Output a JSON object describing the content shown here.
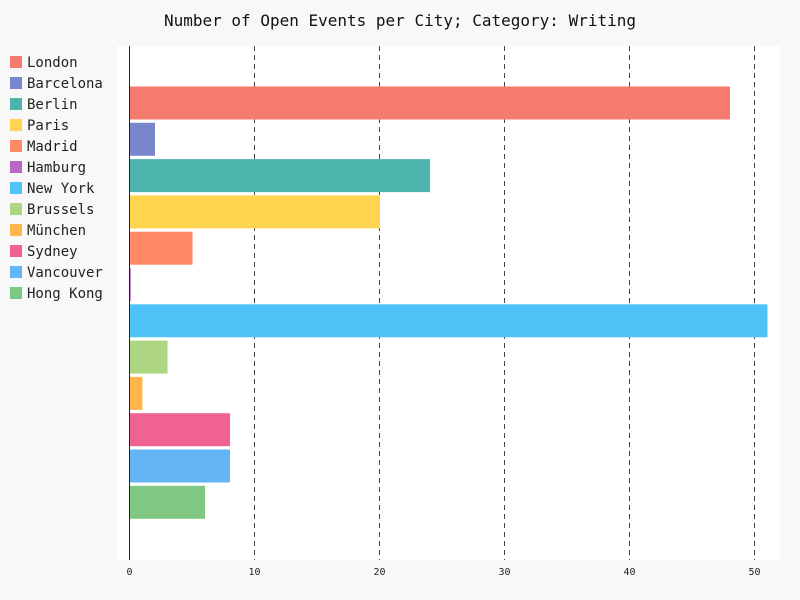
{
  "chart_data": {
    "type": "bar",
    "orientation": "horizontal",
    "title": "Number of Open Events per City; Category: Writing",
    "xlabel": "",
    "ylabel": "",
    "xlim": [
      0,
      51
    ],
    "x_ticks": [
      0,
      10,
      20,
      30,
      40,
      50
    ],
    "grid": "x-dashed",
    "legend_position": "left",
    "categories": [
      "London",
      "Barcelona",
      "Berlin",
      "Paris",
      "Madrid",
      "Hamburg",
      "New York",
      "Brussels",
      "München",
      "Sydney",
      "Vancouver",
      "Hong Kong"
    ],
    "values": [
      48,
      2,
      24,
      20,
      5,
      0,
      51,
      3,
      1,
      8,
      8,
      6
    ],
    "colors": [
      "#f67b6f",
      "#7986cb",
      "#4db6ac",
      "#ffd54f",
      "#ff8a65",
      "#ba68c8",
      "#4fc3f7",
      "#aed581",
      "#ffb74d",
      "#f06292",
      "#64b5f6",
      "#81c784"
    ]
  }
}
